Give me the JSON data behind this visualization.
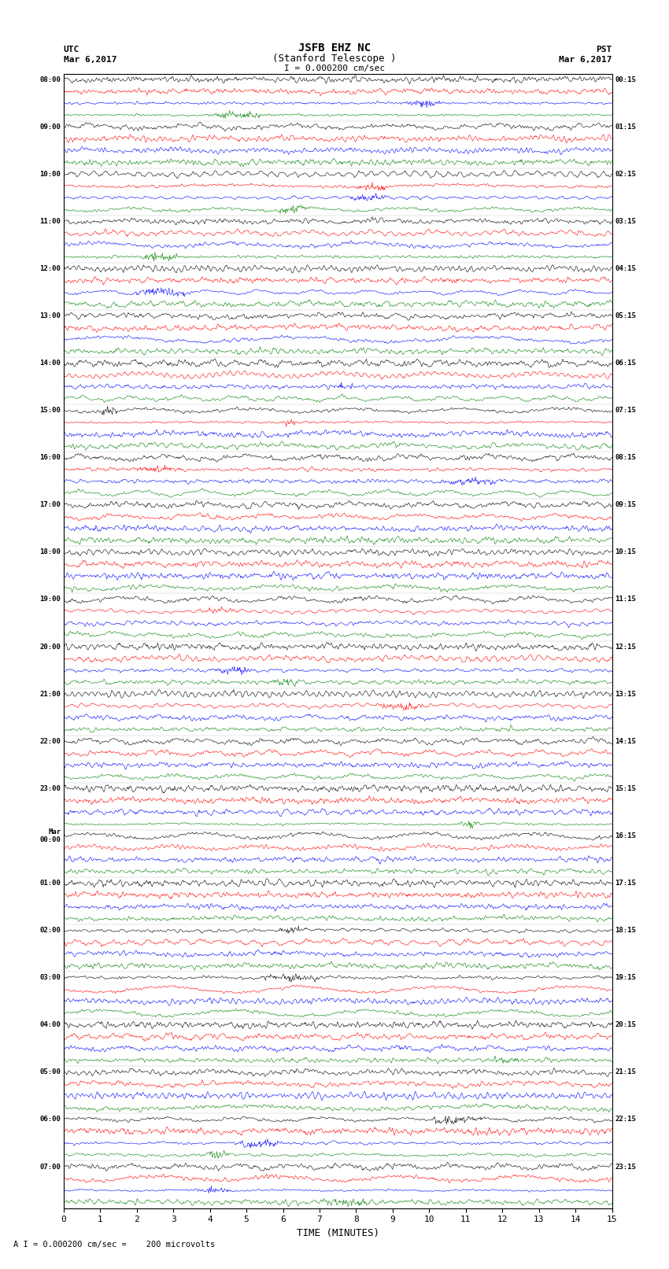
{
  "title_line1": "JSFB EHZ NC",
  "title_line2": "(Stanford Telescope )",
  "scale_label": "0.000200 cm/sec",
  "left_header_line1": "UTC",
  "left_header_line2": "Mar 6,2017",
  "right_header_line1": "PST",
  "right_header_line2": "Mar 6,2017",
  "bottom_label": "TIME (MINUTES)",
  "bottom_note": "= 0.000200 cm/sec =    200 microvolts",
  "utc_times": [
    "08:00",
    "09:00",
    "10:00",
    "11:00",
    "12:00",
    "13:00",
    "14:00",
    "15:00",
    "16:00",
    "17:00",
    "18:00",
    "19:00",
    "20:00",
    "21:00",
    "22:00",
    "23:00",
    "Mar\n00:00",
    "01:00",
    "02:00",
    "03:00",
    "04:00",
    "05:00",
    "06:00",
    "07:00"
  ],
  "pst_times": [
    "00:15",
    "01:15",
    "02:15",
    "03:15",
    "04:15",
    "05:15",
    "06:15",
    "07:15",
    "08:15",
    "09:15",
    "10:15",
    "11:15",
    "12:15",
    "13:15",
    "14:15",
    "15:15",
    "16:15",
    "17:15",
    "18:15",
    "19:15",
    "20:15",
    "21:15",
    "22:15",
    "23:15"
  ],
  "colors": [
    "black",
    "red",
    "blue",
    "green"
  ],
  "n_hours": 24,
  "traces_per_hour": 4,
  "x_min": 0,
  "x_max": 15,
  "x_ticks": [
    0,
    1,
    2,
    3,
    4,
    5,
    6,
    7,
    8,
    9,
    10,
    11,
    12,
    13,
    14,
    15
  ],
  "bg_color": "white",
  "amplitude_scale": 0.38,
  "noise_seed": 42
}
